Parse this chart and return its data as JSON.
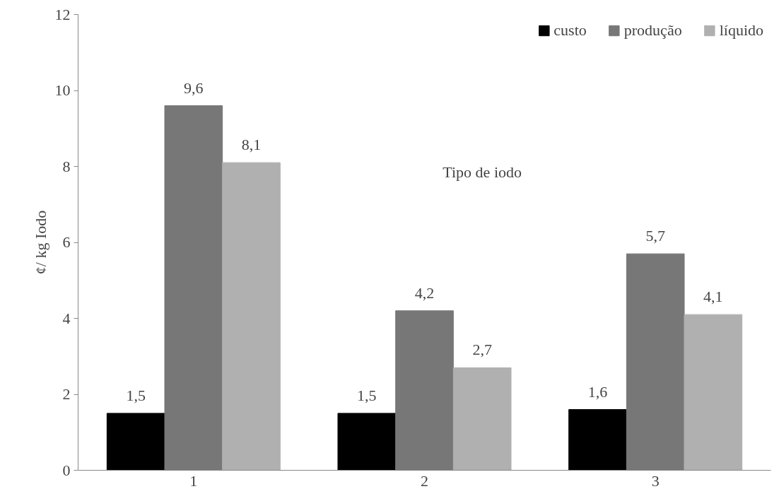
{
  "chart_data": {
    "type": "bar",
    "xlabel": "Tipo de iodo",
    "ylabel": "¢/ kg Iodo",
    "categories": [
      "1",
      "2",
      "3"
    ],
    "series": [
      {
        "name": "custo",
        "color": "#000000",
        "values": [
          1.5,
          1.5,
          1.6
        ],
        "value_labels": [
          "1,5",
          "1,5",
          "1,6"
        ]
      },
      {
        "name": "produção",
        "color": "#777777",
        "values": [
          9.6,
          4.2,
          5.7
        ],
        "value_labels": [
          "9,6",
          "4,2",
          "5,7"
        ]
      },
      {
        "name": "líquido",
        "color": "#b0b0b0",
        "values": [
          8.1,
          2.7,
          4.1
        ],
        "value_labels": [
          "8,1",
          "2,7",
          "4,1"
        ]
      }
    ],
    "ylim": [
      0,
      12
    ],
    "yticks": [
      0,
      2,
      4,
      6,
      8,
      10,
      12
    ],
    "grid": false,
    "legend": "top right"
  }
}
